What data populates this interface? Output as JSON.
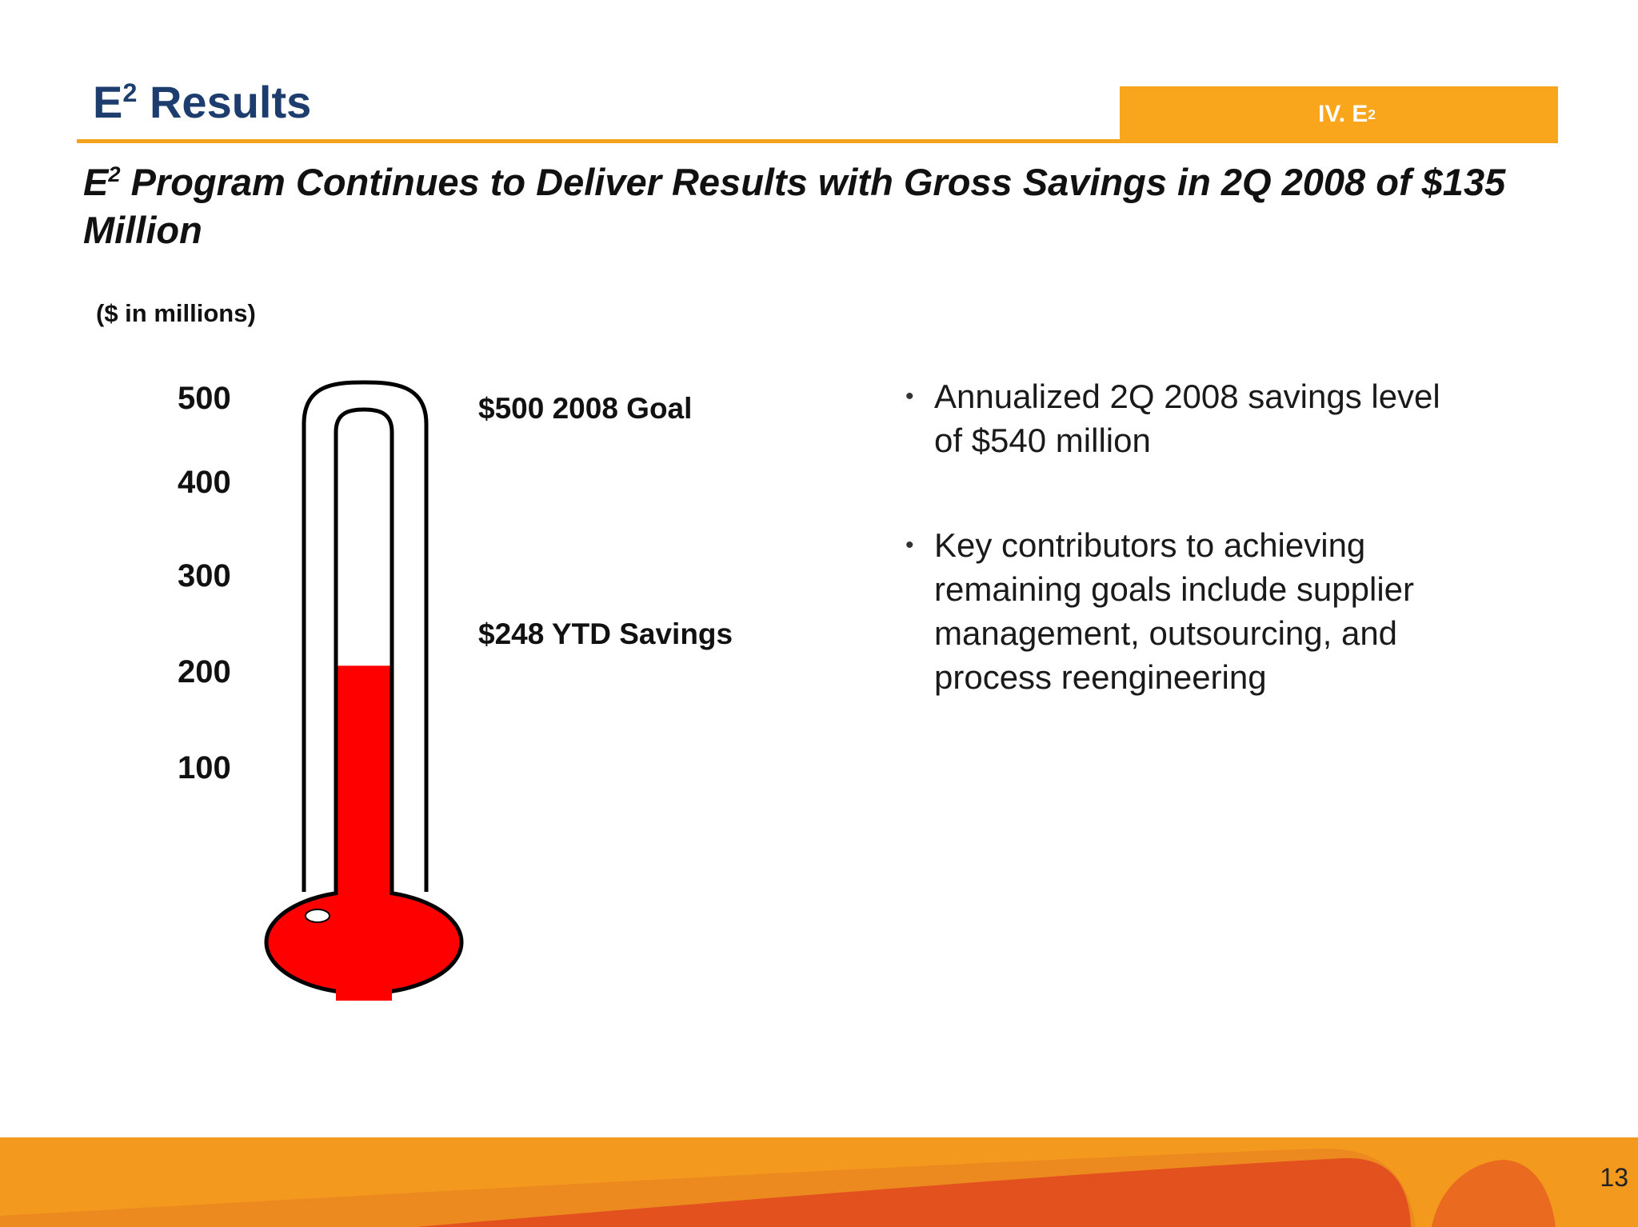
{
  "header": {
    "title": "E",
    "title_superscript": "2",
    "title_rest": " Results",
    "section_tab": "IV. E",
    "section_tab_superscript": "2"
  },
  "subtitle": {
    "prefix": "E",
    "superscript": "2",
    "text": " Program Continues to Deliver Results with Gross Savings in 2Q 2008 of $135 Million"
  },
  "chart_data": {
    "type": "bar",
    "unit_label": "($ in millions)",
    "y_ticks": [
      "500",
      "400",
      "300",
      "200",
      "100"
    ],
    "ylim": [
      0,
      500
    ],
    "goal": {
      "value": 500,
      "label": "$500 2008 Goal"
    },
    "actual": {
      "value": 248,
      "label": "$248 YTD Savings"
    }
  },
  "bullets": [
    {
      "text": "Annualized 2Q 2008 savings level of $540 million"
    },
    {
      "text": "Key contributors to achieving remaining goals include supplier management, outsourcing, and process reengineering"
    }
  ],
  "colors": {
    "title_blue": "#1c3d6e",
    "accent_orange": "#f9a61c",
    "mercury_red": "#ff0000",
    "footer_orange": "#f39a1e",
    "footer_dark": "#e3511e"
  },
  "footer": {
    "page_number": "13"
  }
}
